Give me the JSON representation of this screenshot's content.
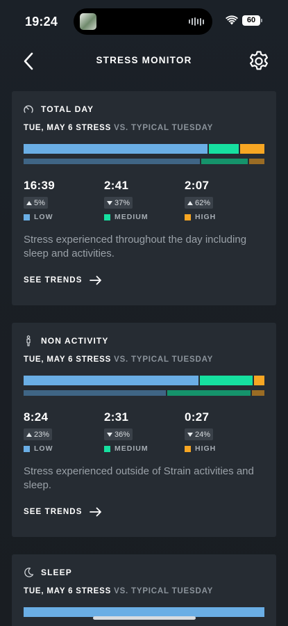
{
  "status_bar": {
    "time": "19:24",
    "battery": "60"
  },
  "header": {
    "title": "STRESS MONITOR"
  },
  "colors": {
    "low": "#6aaee5",
    "medium": "#16e0a0",
    "high": "#f7a623",
    "low_typical": "#3f6585",
    "medium_typical": "#15936b",
    "high_typical": "#9a6c24"
  },
  "cards": [
    {
      "title": "TOTAL DAY",
      "icon": "gauge-icon",
      "compare_bold": "TUE, MAY 6 STRESS",
      "compare_dim": "VS. TYPICAL TUESDAY",
      "today_fractions": [
        0.773,
        0.125,
        0.102
      ],
      "typical_fractions": [
        0.74,
        0.197,
        0.063
      ],
      "stats": [
        {
          "time": "16:39",
          "direction": "up",
          "delta": "5%",
          "label": "LOW"
        },
        {
          "time": "2:41",
          "direction": "down",
          "delta": "37%",
          "label": "MEDIUM"
        },
        {
          "time": "2:07",
          "direction": "up",
          "delta": "62%",
          "label": "HIGH"
        }
      ],
      "description": "Stress experienced throughout the day including sleep and activities.",
      "trends_label": "SEE TRENDS"
    },
    {
      "title": "NON ACTIVITY",
      "icon": "person-icon",
      "compare_bold": "TUE, MAY 6 STRESS",
      "compare_dim": "VS. TYPICAL TUESDAY",
      "today_fractions": [
        0.736,
        0.22,
        0.044
      ],
      "typical_fractions": [
        0.597,
        0.35,
        0.053
      ],
      "stats": [
        {
          "time": "8:24",
          "direction": "up",
          "delta": "23%",
          "label": "LOW"
        },
        {
          "time": "2:31",
          "direction": "down",
          "delta": "36%",
          "label": "MEDIUM"
        },
        {
          "time": "0:27",
          "direction": "down",
          "delta": "24%",
          "label": "HIGH"
        }
      ],
      "description": "Stress experienced outside of Strain activities and sleep.",
      "trends_label": "SEE TRENDS"
    },
    {
      "title": "SLEEP",
      "icon": "moon-icon",
      "compare_bold": "TUE, MAY 6 STRESS",
      "compare_dim": "VS. TYPICAL TUESDAY",
      "today_fractions": [
        1.0,
        0,
        0
      ]
    }
  ]
}
